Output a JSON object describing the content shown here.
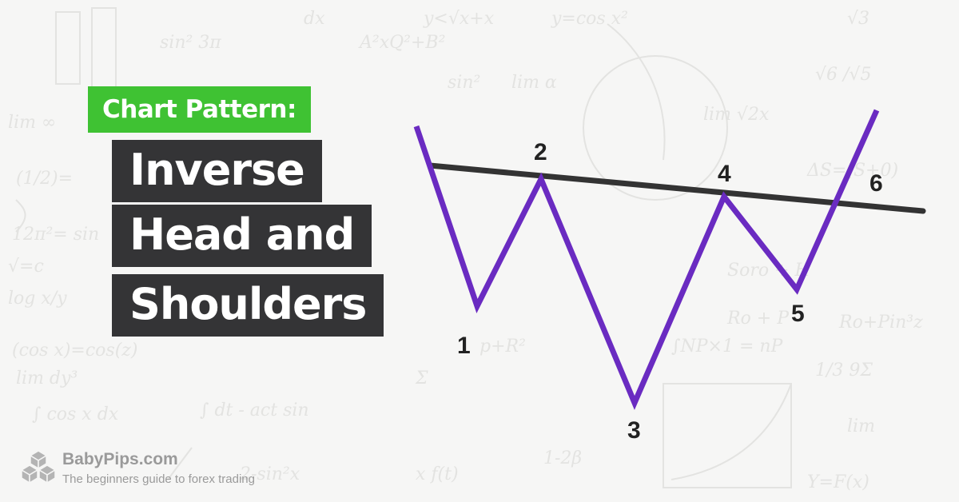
{
  "header": {
    "tag": "Chart Pattern:",
    "title_lines": [
      "Inverse",
      "Head and",
      "Shoulders"
    ]
  },
  "diagram": {
    "point_labels": [
      "1",
      "2",
      "3",
      "4",
      "5",
      "6"
    ],
    "colors": {
      "price_line": "#6a2bc1",
      "neckline": "#333333",
      "tag_bg": "#3fc233",
      "title_bg": "#343436"
    }
  },
  "footer": {
    "brand": "BabyPips.com",
    "tagline": "The beginners guide to forex trading"
  }
}
